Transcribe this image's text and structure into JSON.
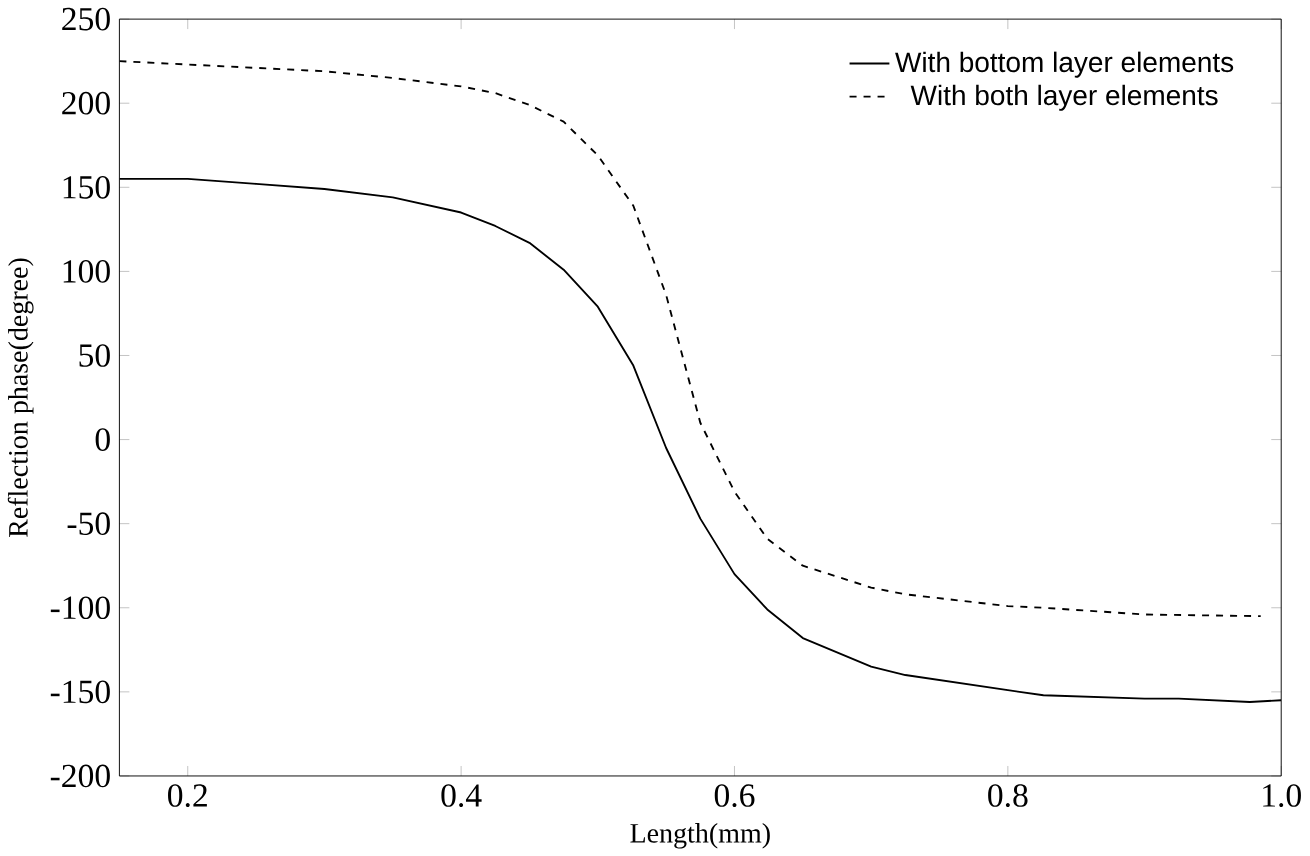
{
  "chart_data": {
    "type": "line",
    "xlabel": "Length(mm)",
    "ylabel": "Reflection phase(degree)",
    "xlim": [
      0.15,
      1.0
    ],
    "xticks": [
      0.2,
      0.4,
      0.6,
      0.8,
      {
        "value": 1,
        "label": "1.0"
      }
    ],
    "ylim": [
      -200,
      250
    ],
    "yticks": [
      -200,
      -150,
      -100,
      -50,
      0,
      50,
      100,
      150,
      200,
      250
    ],
    "legend": "top right",
    "grid": false,
    "series": [
      {
        "name": "With bottom layer elements",
        "color": "#000000",
        "line_style": "solid",
        "x": [
          0.15,
          0.2,
          0.25,
          0.3,
          0.35,
          0.4,
          0.425,
          0.45,
          0.475,
          0.5,
          0.526,
          0.55,
          0.575,
          0.6,
          0.624,
          0.65,
          0.7,
          0.725,
          0.8,
          0.826,
          0.9,
          0.925,
          0.977,
          1.0
        ],
        "values": [
          155,
          155,
          152,
          149,
          144,
          135,
          127,
          117,
          101,
          79,
          44,
          -5,
          -47,
          -80,
          -101,
          -118,
          -135,
          -140,
          -149,
          -152,
          -154,
          -154,
          -156,
          -155
        ]
      },
      {
        "name": "With both layer elements",
        "color": "#000000",
        "line_style": "dashed",
        "x": [
          0.15,
          0.2,
          0.25,
          0.3,
          0.35,
          0.4,
          0.425,
          0.45,
          0.475,
          0.5,
          0.526,
          0.55,
          0.575,
          0.6,
          0.624,
          0.65,
          0.7,
          0.725,
          0.8,
          0.826,
          0.9,
          0.985
        ],
        "values": [
          225,
          223,
          221,
          219,
          215,
          210,
          206,
          199,
          189,
          169,
          139,
          86,
          10,
          -31,
          -59,
          -75,
          -88,
          -92,
          -99,
          -100,
          -104,
          -105
        ]
      }
    ]
  }
}
